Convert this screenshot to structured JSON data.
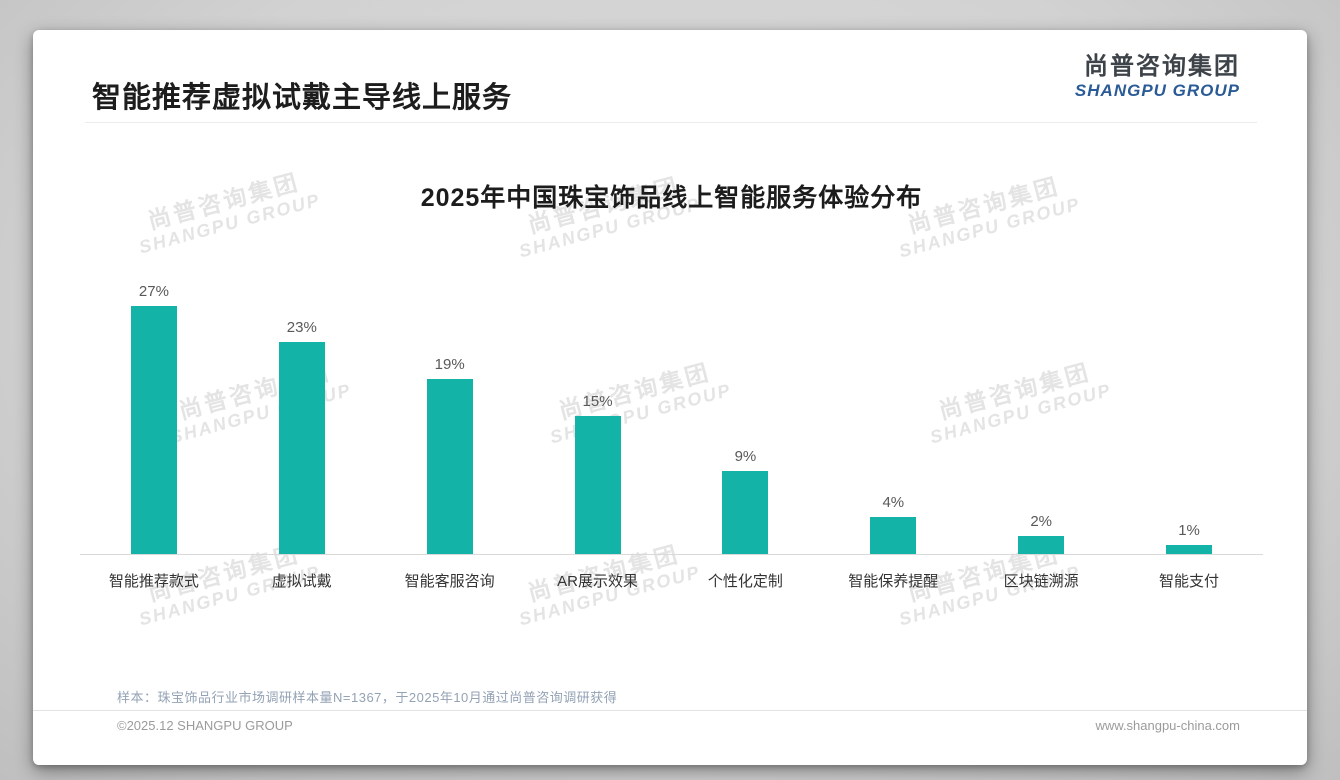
{
  "header": {
    "title": "智能推荐虚拟试戴主导线上服务"
  },
  "logo": {
    "cn": "尚普咨询集团",
    "en": "SHANGPU GROUP"
  },
  "watermark": {
    "line1": "尚普咨询集团",
    "line2": "SHANGPU GROUP"
  },
  "chart_data": {
    "type": "bar",
    "title": "2025年中国珠宝饰品线上智能服务体验分布",
    "categories": [
      "智能推荐款式",
      "虚拟试戴",
      "智能客服咨询",
      "AR展示效果",
      "个性化定制",
      "智能保养提醒",
      "区块链溯源",
      "智能支付"
    ],
    "values": [
      27,
      23,
      19,
      15,
      9,
      4,
      2,
      1
    ],
    "value_labels": [
      "27%",
      "23%",
      "19%",
      "15%",
      "9%",
      "4%",
      "2%",
      "1%"
    ],
    "unit": "%",
    "xlabel": "",
    "ylabel": "",
    "ylim": [
      0,
      30
    ],
    "grid": false,
    "legend": false,
    "bar_color": "#14B3A8"
  },
  "footer": {
    "note": "样本：珠宝饰品行业市场调研样本量N=1367，于2025年10月通过尚普咨询调研获得",
    "copyright": "©2025.12 SHANGPU GROUP",
    "website": "www.shangpu-china.com"
  },
  "colors": {
    "accent_teal": "#14B3A8",
    "logo_blue": "#2B5B97",
    "note_gray_blue": "#93A2B4",
    "footer_gray": "#9B9B9B"
  }
}
